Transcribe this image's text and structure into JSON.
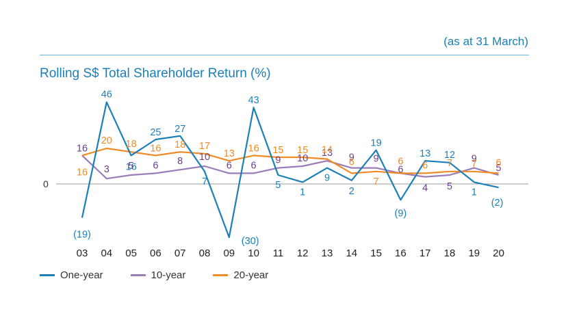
{
  "header": {
    "as_at": "(as at 31 March)",
    "title": "Rolling S$ Total Shareholder Return (%)"
  },
  "chart_data": {
    "type": "line",
    "title": "Rolling S$ Total Shareholder Return (%)",
    "subtitle": "(as at 31 March)",
    "categories": [
      "03",
      "04",
      "05",
      "06",
      "07",
      "08",
      "09",
      "10",
      "11",
      "12",
      "13",
      "14",
      "15",
      "16",
      "17",
      "18",
      "19",
      "20"
    ],
    "zero_label": "0",
    "series": [
      {
        "name": "One-year",
        "color": "#1a7fb8",
        "values": [
          -19,
          46,
          16,
          25,
          27,
          7,
          -30,
          43,
          5,
          1,
          9,
          2,
          19,
          -9,
          13,
          12,
          1,
          -2
        ],
        "labels": [
          "(19)",
          "46",
          "16",
          "25",
          "27",
          "7",
          "(30)",
          "43",
          "5",
          "1",
          "9",
          "2",
          "19",
          "(9)",
          "13",
          "12",
          "1",
          "(2)"
        ]
      },
      {
        "name": "10-year",
        "color": "#9b7bb8",
        "label_color": "#6b3f8c",
        "values": [
          16,
          3,
          5,
          6,
          8,
          10,
          6,
          6,
          9,
          10,
          13,
          9,
          9,
          6,
          4,
          5,
          9,
          5
        ],
        "labels": [
          "16",
          "3",
          "5",
          "6",
          "8",
          "10",
          "6",
          "6",
          "9",
          "10",
          "13",
          "9",
          "9",
          "6",
          "4",
          "5",
          "9",
          "5"
        ]
      },
      {
        "name": "20-year",
        "color": "#f08a24",
        "values": [
          16,
          20,
          18,
          16,
          18,
          17,
          13,
          16,
          15,
          15,
          14,
          6,
          7,
          6,
          6,
          7,
          7,
          6
        ],
        "labels": [
          "16",
          "20",
          "18",
          "16",
          "18",
          "17",
          "13",
          "16",
          "15",
          "15",
          "14",
          "6",
          "7",
          "6",
          "6",
          "7",
          "7",
          "6"
        ]
      }
    ],
    "ylim": [
      -31,
      47
    ],
    "grid": false,
    "legend_position": "bottom-left"
  }
}
